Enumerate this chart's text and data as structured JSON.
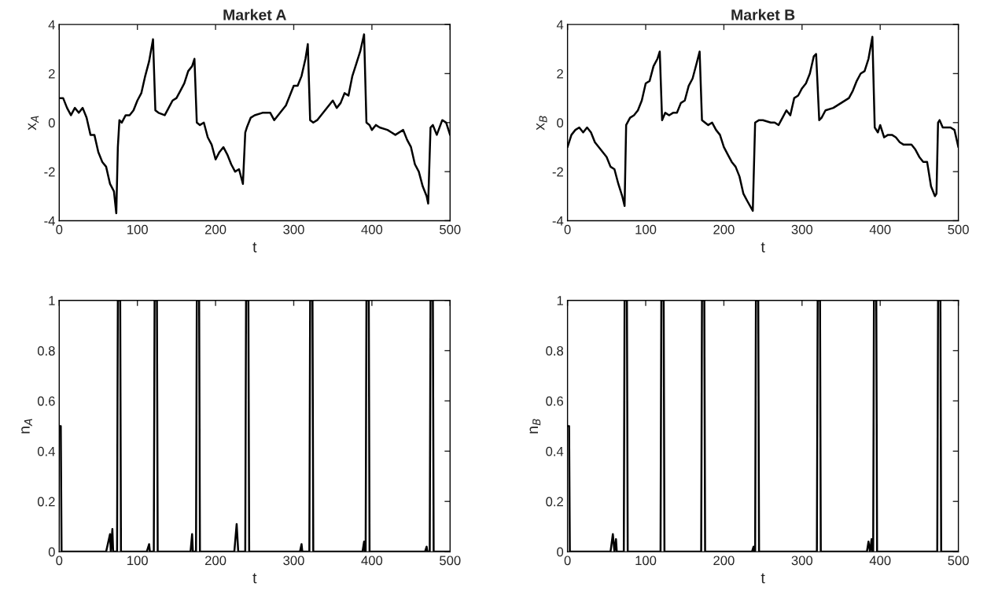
{
  "chart_data": [
    {
      "type": "line",
      "title": "Market A",
      "xlabel": "t",
      "ylabel": "x$_{A}$",
      "xlim": [
        0,
        500
      ],
      "ylim": [
        -4,
        4
      ],
      "xticks": [
        0,
        100,
        200,
        300,
        400,
        500
      ],
      "yticks": [
        -4,
        -2,
        0,
        2,
        4
      ],
      "grid": false,
      "series": [
        {
          "color": "#000000",
          "x": [
            0,
            5,
            10,
            15,
            20,
            25,
            30,
            35,
            40,
            45,
            50,
            55,
            60,
            65,
            70,
            73,
            75,
            77,
            80,
            85,
            90,
            95,
            100,
            105,
            110,
            115,
            120,
            123,
            127,
            135,
            140,
            145,
            150,
            155,
            160,
            165,
            170,
            173,
            176,
            180,
            185,
            190,
            195,
            200,
            205,
            210,
            215,
            220,
            225,
            230,
            235,
            238,
            240,
            245,
            250,
            260,
            270,
            275,
            280,
            290,
            295,
            300,
            305,
            310,
            315,
            318,
            321,
            325,
            330,
            335,
            340,
            345,
            350,
            355,
            360,
            365,
            370,
            375,
            380,
            385,
            390,
            393,
            397,
            400,
            405,
            410,
            420,
            425,
            430,
            440,
            445,
            450,
            455,
            460,
            465,
            470,
            472,
            475,
            478,
            483,
            490,
            495,
            500
          ],
          "values": [
            1,
            1,
            0.6,
            0.3,
            0.6,
            0.4,
            0.6,
            0.2,
            -0.5,
            -0.5,
            -1.2,
            -1.6,
            -1.8,
            -2.5,
            -2.8,
            -3.7,
            -1,
            0.1,
            0,
            0.3,
            0.3,
            0.5,
            0.9,
            1.2,
            1.9,
            2.5,
            3.4,
            0.5,
            0.4,
            0.3,
            0.6,
            0.9,
            1,
            1.3,
            1.6,
            2.1,
            2.3,
            2.6,
            0,
            -0.1,
            0,
            -0.6,
            -0.9,
            -1.5,
            -1.2,
            -1,
            -1.3,
            -1.7,
            -2,
            -1.9,
            -2.5,
            -0.4,
            -0.2,
            0.2,
            0.3,
            0.4,
            0.4,
            0.1,
            0.3,
            0.7,
            1.1,
            1.5,
            1.5,
            1.9,
            2.6,
            3.2,
            0.1,
            0,
            0.1,
            0.3,
            0.5,
            0.7,
            0.9,
            0.6,
            0.8,
            1.2,
            1.1,
            1.9,
            2.4,
            2.9,
            3.6,
            0,
            -0.1,
            -0.3,
            -0.1,
            -0.2,
            -0.3,
            -0.4,
            -0.5,
            -0.3,
            -0.7,
            -1,
            -1.7,
            -2,
            -2.6,
            -3,
            -3.3,
            -0.2,
            -0.1,
            -0.5,
            0.1,
            0,
            -0.5
          ]
        }
      ]
    },
    {
      "type": "line",
      "title": "Market B",
      "xlabel": "t",
      "ylabel": "x$_{B}$",
      "xlim": [
        0,
        500
      ],
      "ylim": [
        -4,
        4
      ],
      "xticks": [
        0,
        100,
        200,
        300,
        400,
        500
      ],
      "yticks": [
        -4,
        -2,
        0,
        2,
        4
      ],
      "grid": false,
      "series": [
        {
          "color": "#000000",
          "x": [
            0,
            5,
            10,
            15,
            20,
            25,
            30,
            35,
            40,
            45,
            50,
            55,
            60,
            65,
            70,
            73,
            75,
            80,
            85,
            90,
            95,
            100,
            105,
            110,
            115,
            118,
            121,
            125,
            130,
            135,
            140,
            145,
            150,
            155,
            160,
            165,
            169,
            172,
            180,
            185,
            190,
            195,
            200,
            205,
            210,
            215,
            220,
            225,
            230,
            237,
            240,
            245,
            250,
            260,
            265,
            270,
            275,
            280,
            285,
            290,
            295,
            300,
            305,
            310,
            315,
            318,
            322,
            325,
            330,
            340,
            350,
            360,
            365,
            370,
            375,
            380,
            385,
            390,
            393,
            397,
            400,
            405,
            410,
            415,
            420,
            425,
            430,
            440,
            445,
            450,
            455,
            460,
            465,
            470,
            472,
            474,
            476,
            480,
            485,
            490,
            495,
            500
          ],
          "values": [
            -1,
            -0.5,
            -0.3,
            -0.2,
            -0.4,
            -0.2,
            -0.4,
            -0.8,
            -1,
            -1.2,
            -1.4,
            -1.8,
            -1.9,
            -2.5,
            -3,
            -3.4,
            -0.1,
            0.2,
            0.3,
            0.5,
            0.9,
            1.6,
            1.7,
            2.3,
            2.6,
            2.9,
            0.1,
            0.4,
            0.3,
            0.4,
            0.4,
            0.8,
            0.9,
            1.5,
            1.8,
            2.4,
            2.9,
            0.1,
            -0.1,
            0,
            -0.3,
            -0.5,
            -1,
            -1.3,
            -1.6,
            -1.8,
            -2.2,
            -2.9,
            -3.2,
            -3.6,
            0,
            0.1,
            0.1,
            0,
            0,
            -0.1,
            0.2,
            0.5,
            0.3,
            1,
            1.1,
            1.4,
            1.6,
            2,
            2.7,
            2.8,
            0.1,
            0.2,
            0.5,
            0.6,
            0.8,
            1,
            1.3,
            1.7,
            2,
            2.1,
            2.6,
            3.5,
            -0.2,
            -0.4,
            -0.1,
            -0.6,
            -0.5,
            -0.5,
            -0.6,
            -0.8,
            -0.9,
            -0.9,
            -1.1,
            -1.4,
            -1.6,
            -1.6,
            -2.6,
            -3,
            -2.9,
            0,
            0.1,
            -0.2,
            -0.2,
            -0.2,
            -0.3,
            -1
          ]
        }
      ]
    },
    {
      "type": "line",
      "xlabel": "t",
      "ylabel": "n$_{A}$",
      "xlim": [
        0,
        500
      ],
      "ylim": [
        0,
        1
      ],
      "xticks": [
        0,
        100,
        200,
        300,
        400,
        500
      ],
      "yticks": [
        0,
        0.2,
        0.4,
        0.6,
        0.8,
        1
      ],
      "grid": false,
      "series": [
        {
          "color": "#000000",
          "x": [
            0,
            2,
            3,
            60,
            65,
            66,
            68,
            69,
            74,
            75,
            78,
            79,
            112,
            115,
            116,
            121,
            122,
            125,
            126,
            168,
            170,
            171,
            175,
            176,
            179,
            180,
            224,
            227,
            229,
            238,
            239,
            242,
            243,
            308,
            310,
            311,
            320,
            321,
            324,
            325,
            388,
            390,
            391,
            392,
            393,
            396,
            397,
            468,
            470,
            471,
            474,
            475,
            478,
            479,
            500
          ],
          "values": [
            0.5,
            0.5,
            0,
            0,
            0.07,
            0,
            0.09,
            0,
            0,
            1,
            1,
            0,
            0,
            0.03,
            0,
            0,
            1,
            1,
            0,
            0,
            0.07,
            0,
            0,
            1,
            1,
            0,
            0,
            0.11,
            0,
            0,
            1,
            1,
            0,
            0,
            0.03,
            0,
            0,
            1,
            1,
            0,
            0,
            0.04,
            0,
            0,
            1,
            1,
            0,
            0,
            0.02,
            0,
            0,
            1,
            1,
            0,
            0
          ]
        }
      ]
    },
    {
      "type": "line",
      "xlabel": "t",
      "ylabel": "n$_{B}$",
      "xlim": [
        0,
        500
      ],
      "ylim": [
        0,
        1
      ],
      "xticks": [
        0,
        100,
        200,
        300,
        400,
        500
      ],
      "yticks": [
        0,
        0.2,
        0.4,
        0.6,
        0.8,
        1
      ],
      "grid": false,
      "series": [
        {
          "color": "#000000",
          "x": [
            0,
            2,
            3,
            55,
            58,
            60,
            62,
            63,
            72,
            73,
            76,
            77,
            119,
            120,
            123,
            124,
            171,
            172,
            175,
            176,
            236,
            238,
            239,
            240,
            241,
            244,
            245,
            319,
            320,
            323,
            324,
            383,
            385,
            387,
            389,
            390,
            391,
            392,
            395,
            396,
            473,
            474,
            477,
            478,
            500
          ],
          "values": [
            0.5,
            0.5,
            0,
            0,
            0.07,
            0,
            0.05,
            0,
            0,
            1,
            1,
            0,
            0,
            1,
            1,
            0,
            0,
            1,
            1,
            0,
            0,
            0.02,
            0,
            0,
            1,
            1,
            0,
            0,
            1,
            1,
            0,
            0,
            0.04,
            0,
            0.05,
            0,
            0,
            1,
            1,
            0,
            0,
            1,
            1,
            0,
            0
          ]
        }
      ]
    }
  ]
}
